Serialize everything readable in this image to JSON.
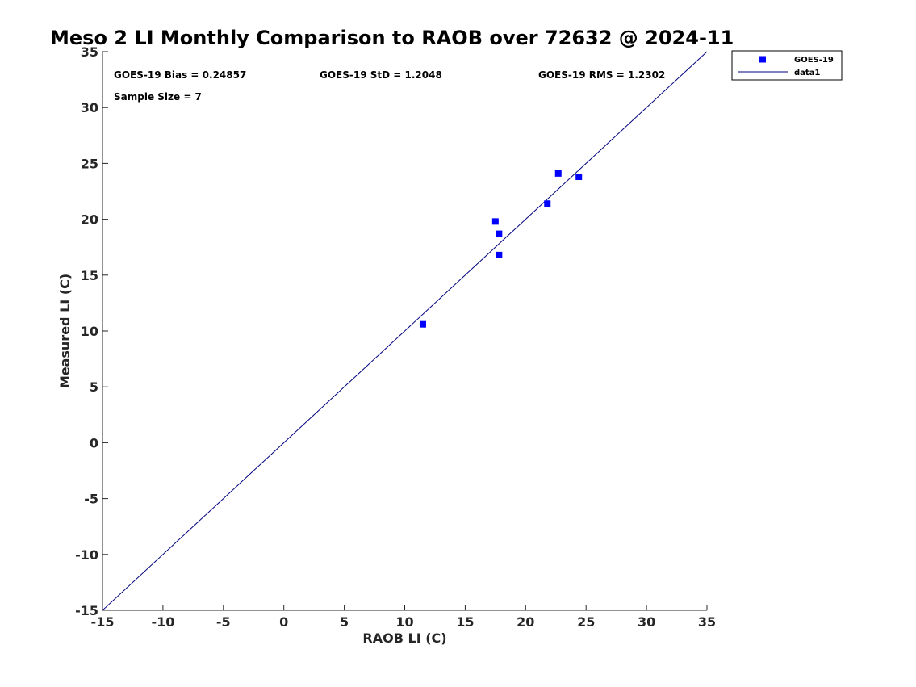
{
  "chart_data": {
    "type": "scatter",
    "title": "Meso 2 LI Monthly Comparison to RAOB over 72632 @ 2024-11",
    "xlabel": "RAOB LI (C)",
    "ylabel": "Measured LI (C)",
    "xlim": [
      -15,
      35
    ],
    "ylim": [
      -15,
      35
    ],
    "xticks": [
      "-15",
      "-10",
      "-5",
      "0",
      "5",
      "10",
      "15",
      "20",
      "25",
      "30",
      "35"
    ],
    "yticks": [
      "-15",
      "-10",
      "-5",
      "0",
      "5",
      "10",
      "15",
      "20",
      "25",
      "30",
      "35"
    ],
    "grid": false,
    "legend_position": "top-right outside",
    "annotations": [
      "GOES-19 Bias = 0.24857",
      "GOES-19 StD = 1.2048",
      "GOES-19 RMS = 1.2302",
      "Sample Size = 7"
    ],
    "series": [
      {
        "name": "GOES-19",
        "kind": "scatter",
        "marker": "square",
        "color": "#0000ff",
        "points": [
          {
            "x": 11.5,
            "y": 10.6
          },
          {
            "x": 17.5,
            "y": 19.8
          },
          {
            "x": 17.8,
            "y": 18.7
          },
          {
            "x": 17.8,
            "y": 16.8
          },
          {
            "x": 21.8,
            "y": 21.4
          },
          {
            "x": 22.7,
            "y": 24.1
          },
          {
            "x": 24.4,
            "y": 23.8
          }
        ]
      },
      {
        "name": "data1",
        "kind": "line",
        "color": "#000080",
        "points": [
          {
            "x": -15,
            "y": -15
          },
          {
            "x": 35,
            "y": 35
          }
        ]
      }
    ]
  }
}
